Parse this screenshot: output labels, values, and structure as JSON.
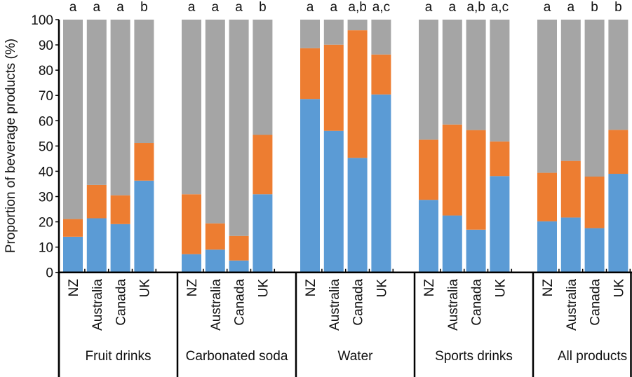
{
  "chart_data": {
    "type": "bar",
    "stacked": true,
    "title": "",
    "xlabel": "",
    "ylabel": "Proportion of beverage products (%)",
    "ylim": [
      0,
      100
    ],
    "yticks": [
      0,
      10,
      20,
      30,
      40,
      50,
      60,
      70,
      80,
      90,
      100
    ],
    "grid": false,
    "legend": null,
    "series_colors": {
      "blue": "#5b9bd5",
      "orange": "#ed7d31",
      "gray": "#a5a5a5"
    },
    "groups": [
      {
        "name": "Fruit drinks",
        "bars": [
          {
            "category": "NZ",
            "blue": 14.1,
            "orange": 7.0,
            "gray": 78.9,
            "sig": "a"
          },
          {
            "category": "Australia",
            "blue": 21.4,
            "orange": 13.2,
            "gray": 65.4,
            "sig": "a"
          },
          {
            "category": "Canada",
            "blue": 19.1,
            "orange": 11.4,
            "gray": 69.5,
            "sig": "a"
          },
          {
            "category": "UK",
            "blue": 36.3,
            "orange": 14.9,
            "gray": 48.8,
            "sig": "b"
          }
        ]
      },
      {
        "name": "Carbonated soda",
        "bars": [
          {
            "category": "NZ",
            "blue": 7.2,
            "orange": 23.7,
            "gray": 69.1,
            "sig": "a"
          },
          {
            "category": "Australia",
            "blue": 9.0,
            "orange": 10.4,
            "gray": 80.6,
            "sig": "a"
          },
          {
            "category": "Canada",
            "blue": 4.7,
            "orange": 9.7,
            "gray": 85.6,
            "sig": "a"
          },
          {
            "category": "UK",
            "blue": 30.9,
            "orange": 23.5,
            "gray": 45.6,
            "sig": "b"
          }
        ]
      },
      {
        "name": "Water",
        "bars": [
          {
            "category": "NZ",
            "blue": 68.6,
            "orange": 20.1,
            "gray": 11.3,
            "sig": "a"
          },
          {
            "category": "Australia",
            "blue": 56.0,
            "orange": 34.1,
            "gray": 9.9,
            "sig": "a"
          },
          {
            "category": "Canada",
            "blue": 45.3,
            "orange": 50.5,
            "gray": 4.2,
            "sig": "a,b"
          },
          {
            "category": "UK",
            "blue": 70.4,
            "orange": 15.8,
            "gray": 13.8,
            "sig": "a,c"
          }
        ]
      },
      {
        "name": "Sports drinks",
        "bars": [
          {
            "category": "NZ",
            "blue": 28.7,
            "orange": 23.8,
            "gray": 47.5,
            "sig": "a"
          },
          {
            "category": "Australia",
            "blue": 22.5,
            "orange": 36.0,
            "gray": 41.5,
            "sig": "a"
          },
          {
            "category": "Canada",
            "blue": 16.9,
            "orange": 39.4,
            "gray": 43.7,
            "sig": "a,b"
          },
          {
            "category": "UK",
            "blue": 38.1,
            "orange": 13.7,
            "gray": 48.2,
            "sig": "a,c"
          }
        ]
      },
      {
        "name": "All products",
        "bars": [
          {
            "category": "NZ",
            "blue": 20.2,
            "orange": 19.2,
            "gray": 60.6,
            "sig": "a"
          },
          {
            "category": "Australia",
            "blue": 21.7,
            "orange": 22.4,
            "gray": 55.9,
            "sig": "a"
          },
          {
            "category": "Canada",
            "blue": 17.5,
            "orange": 20.4,
            "gray": 62.1,
            "sig": "b"
          },
          {
            "category": "UK",
            "blue": 39.0,
            "orange": 17.4,
            "gray": 43.6,
            "sig": "b"
          }
        ]
      }
    ]
  }
}
